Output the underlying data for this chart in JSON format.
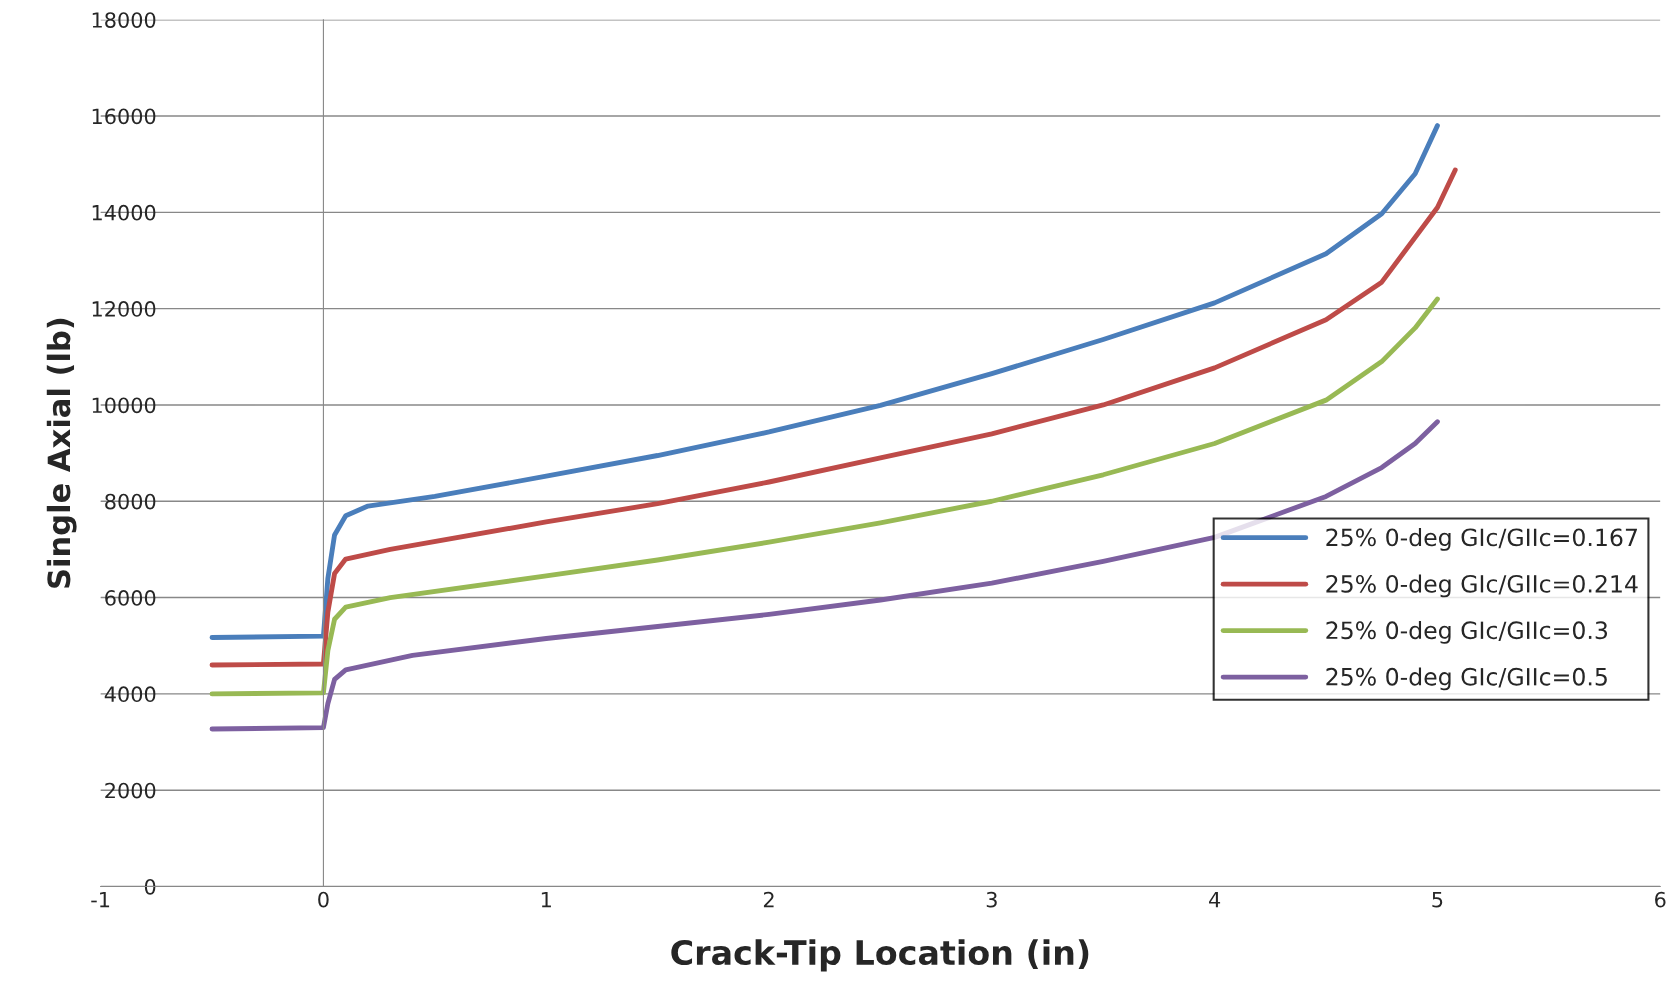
{
  "chart_data": {
    "type": "line",
    "xlabel": "Crack-Tip Location (in)",
    "ylabel": "Single Axial (lb)",
    "xlim": [
      -1,
      6
    ],
    "xticks": [
      -1,
      0,
      1,
      2,
      3,
      4,
      5,
      6
    ],
    "ylim": [
      0,
      18000
    ],
    "yticks": [
      0,
      2000,
      4000,
      6000,
      8000,
      10000,
      12000,
      14000,
      16000,
      18000
    ],
    "grid": "y",
    "legend": "right",
    "marker": "none",
    "line_style": "solid",
    "series": [
      {
        "name": "25% 0-deg GIc/GIIc=0.167",
        "color": "#4a7ebb",
        "x": [
          -0.5,
          0,
          0.02,
          0.05,
          0.1,
          0.2,
          0.5,
          1,
          1.5,
          2,
          2.5,
          3,
          3.5,
          4,
          4.5,
          4.75,
          4.9,
          5
        ],
        "values": [
          5170,
          5200,
          6400,
          7300,
          7700,
          7900,
          8100,
          8520,
          8950,
          9440,
          9990,
          10650,
          11360,
          12120,
          13140,
          13970,
          14800,
          15800
        ]
      },
      {
        "name": "25% 0-deg GIc/GIIc=0.214",
        "color": "#be4b48",
        "x": [
          -0.5,
          0,
          0.02,
          0.05,
          0.1,
          0.3,
          1,
          1.5,
          2,
          2.5,
          3,
          3.5,
          4,
          4.5,
          4.75,
          5,
          5.08
        ],
        "values": [
          4600,
          4620,
          5700,
          6500,
          6800,
          7000,
          7570,
          7950,
          8400,
          8900,
          9400,
          10000,
          10770,
          11770,
          12550,
          14100,
          14880
        ]
      },
      {
        "name": "25% 0-deg GIc/GIIc=0.3",
        "color": "#98b954",
        "x": [
          -0.5,
          0,
          0.02,
          0.05,
          0.1,
          0.3,
          1,
          1.5,
          2,
          2.5,
          3,
          3.5,
          4,
          4.5,
          4.75,
          4.9,
          5
        ],
        "values": [
          4000,
          4020,
          4900,
          5550,
          5800,
          6000,
          6450,
          6780,
          7150,
          7550,
          8000,
          8550,
          9200,
          10100,
          10900,
          11600,
          12200
        ]
      },
      {
        "name": "25% 0-deg GIc/GIIc=0.5",
        "color": "#7d60a0",
        "x": [
          -0.5,
          0,
          0.02,
          0.05,
          0.1,
          0.4,
          1,
          1.5,
          2,
          2.5,
          3,
          3.5,
          4,
          4.5,
          4.75,
          4.9,
          5
        ],
        "values": [
          3270,
          3300,
          3800,
          4300,
          4500,
          4800,
          5150,
          5400,
          5650,
          5950,
          6300,
          6750,
          7250,
          8100,
          8700,
          9200,
          9650
        ]
      }
    ]
  }
}
